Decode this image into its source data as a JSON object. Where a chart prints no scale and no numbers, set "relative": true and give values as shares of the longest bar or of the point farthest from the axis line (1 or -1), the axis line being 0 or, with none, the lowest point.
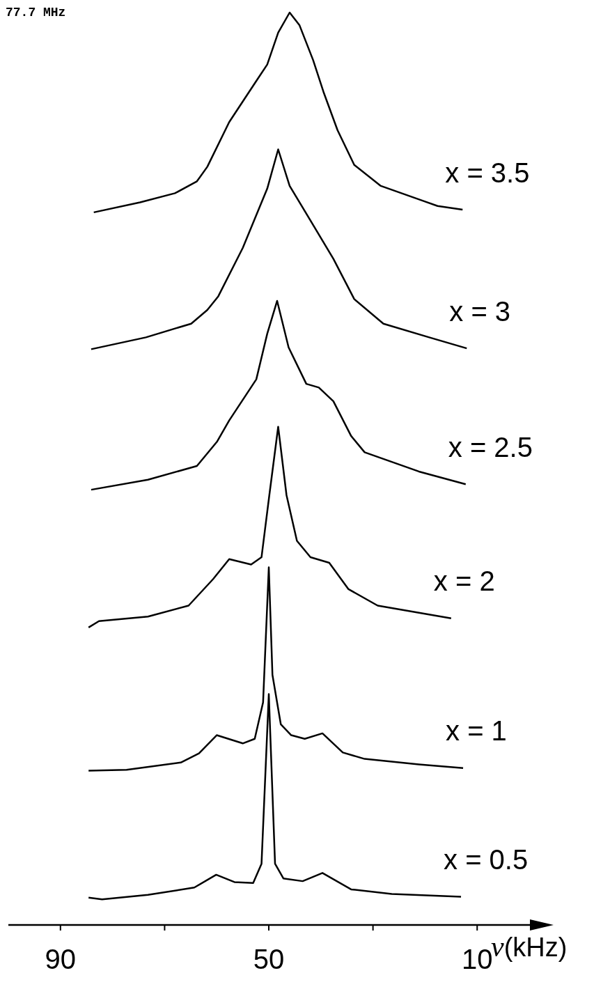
{
  "chart_data": {
    "type": "line",
    "title": "77.7 MHz",
    "xlabel": "ν(kHz)",
    "relative": true,
    "line_style": "solid",
    "xlim": [
      100,
      -2
    ],
    "xticks": [
      90,
      {
        "value": 70,
        "label": null
      },
      50,
      {
        "value": 30,
        "label": null
      },
      10
    ],
    "series": [
      {
        "name": "x = 3.5",
        "color": "#000000",
        "x": [
          83.6,
          74.7,
          68.0,
          63.8,
          61.8,
          57.6,
          52.4,
          50.3,
          48.2,
          46.0,
          44.1,
          41.5,
          39.5,
          36.8,
          33.6,
          28.5,
          20.1,
          17.6,
          12.8
        ],
        "values": [
          0.781,
          0.792,
          0.802,
          0.815,
          0.831,
          0.88,
          0.925,
          0.943,
          0.978,
          1,
          0.986,
          0.948,
          0.913,
          0.871,
          0.833,
          0.81,
          0.793,
          0.788,
          0.784
        ]
      },
      {
        "name": "x = 3",
        "color": "#000000",
        "x": [
          84.1,
          73.6,
          64.9,
          61.8,
          59.7,
          55.0,
          50.3,
          48.2,
          46.0,
          42.0,
          37.6,
          33.6,
          28.0,
          19.2,
          12.0
        ],
        "values": [
          0.631,
          0.644,
          0.659,
          0.674,
          0.689,
          0.742,
          0.807,
          0.85,
          0.81,
          0.772,
          0.73,
          0.686,
          0.659,
          0.644,
          0.632
        ]
      },
      {
        "name": "x = 2.5",
        "color": "#000000",
        "x": [
          84.1,
          73.2,
          63.8,
          59.9,
          57.6,
          52.4,
          50.3,
          48.4,
          46.2,
          42.8,
          40.4,
          37.6,
          34.2,
          31.6,
          21.2,
          12.2
        ],
        "values": [
          0.477,
          0.488,
          0.503,
          0.53,
          0.553,
          0.598,
          0.648,
          0.684,
          0.633,
          0.593,
          0.589,
          0.574,
          0.536,
          0.518,
          0.497,
          0.483
        ]
      },
      {
        "name": "x = 2",
        "color": "#000000",
        "x": [
          84.6,
          82.6,
          73.2,
          65.4,
          60.7,
          57.6,
          53.4,
          51.4,
          49.9,
          48.2,
          46.6,
          44.6,
          42.0,
          38.4,
          34.7,
          29.1,
          15.0
        ],
        "values": [
          0.326,
          0.333,
          0.338,
          0.35,
          0.379,
          0.401,
          0.395,
          0.403,
          0.471,
          0.546,
          0.471,
          0.421,
          0.403,
          0.397,
          0.368,
          0.35,
          0.336
        ]
      },
      {
        "name": "x = 1",
        "color": "#000000",
        "x": [
          84.6,
          77.3,
          66.9,
          63.4,
          60.0,
          55.0,
          52.7,
          51.1,
          50.0,
          49.3,
          47.7,
          45.7,
          43.1,
          39.7,
          35.8,
          31.6,
          21.2,
          12.7
        ],
        "values": [
          0.169,
          0.17,
          0.178,
          0.188,
          0.208,
          0.199,
          0.204,
          0.244,
          0.392,
          0.274,
          0.22,
          0.208,
          0.204,
          0.21,
          0.189,
          0.182,
          0.176,
          0.172
        ]
      },
      {
        "name": "x = 0.5",
        "color": "#000000",
        "x": [
          84.6,
          82.0,
          73.2,
          64.3,
          60.1,
          56.6,
          53.0,
          51.4,
          50.0,
          48.8,
          47.2,
          43.5,
          39.7,
          34.2,
          26.4,
          13.1
        ],
        "values": [
          0.03,
          0.028,
          0.033,
          0.041,
          0.055,
          0.047,
          0.046,
          0.067,
          0.253,
          0.067,
          0.051,
          0.048,
          0.057,
          0.039,
          0.034,
          0.031
        ]
      }
    ]
  }
}
